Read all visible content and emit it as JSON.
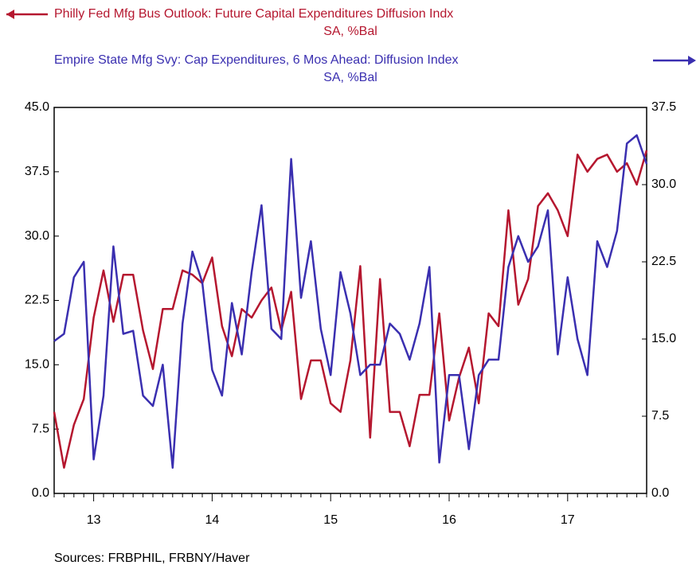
{
  "chart_data": {
    "type": "line",
    "categories": [
      null,
      null,
      null,
      null,
      "13",
      null,
      null,
      null,
      null,
      null,
      null,
      null,
      null,
      null,
      null,
      null,
      "14",
      null,
      null,
      null,
      null,
      null,
      null,
      null,
      null,
      null,
      null,
      null,
      "15",
      null,
      null,
      null,
      null,
      null,
      null,
      null,
      null,
      null,
      null,
      null,
      "16",
      null,
      null,
      null,
      null,
      null,
      null,
      null,
      null,
      null,
      null,
      null,
      "17",
      null,
      null,
      null,
      null,
      null,
      null,
      null,
      null
    ],
    "series": [
      {
        "name": "Philly Fed Mfg Bus Outlook: Future Capital Expenditures Diffusion Indx",
        "units": "SA, %Bal",
        "color": "#b5172f",
        "axis": "y",
        "values": [
          9.5,
          3.0,
          8.0,
          11.0,
          20.5,
          26.0,
          20.0,
          25.5,
          25.5,
          19.0,
          14.5,
          21.5,
          21.5,
          26.0,
          25.5,
          24.5,
          27.5,
          19.5,
          16.0,
          21.5,
          20.5,
          22.5,
          24.0,
          19.0,
          23.5,
          11.0,
          15.5,
          15.5,
          10.5,
          9.5,
          15.5,
          26.5,
          6.5,
          25.0,
          9.5,
          9.5,
          5.5,
          11.5,
          11.5,
          21.0,
          8.5,
          13.5,
          17.0,
          10.5,
          21.0,
          19.5,
          33.0,
          22.0,
          25.0,
          33.5,
          35.0,
          33.0,
          30.0,
          39.5,
          37.5,
          39.0,
          39.5,
          37.5,
          38.5,
          36.0,
          40.0
        ]
      },
      {
        "name": "Empire State Mfg Svy: Cap Expenditures, 6 Mos Ahead: Diffusion Index",
        "units": "SA, %Bal",
        "color": "#3a2fb0",
        "axis": "y2",
        "values": [
          14.8,
          15.5,
          21.0,
          22.5,
          3.3,
          9.5,
          24.0,
          15.5,
          15.8,
          9.5,
          8.5,
          12.5,
          2.5,
          16.5,
          23.5,
          20.5,
          12.0,
          9.5,
          18.5,
          13.5,
          21.5,
          28.0,
          16.0,
          15.0,
          32.5,
          19.0,
          24.5,
          16.0,
          11.5,
          21.5,
          17.5,
          11.5,
          12.5,
          12.5,
          16.5,
          15.5,
          13.0,
          16.5,
          22.0,
          3.0,
          11.5,
          11.5,
          4.3,
          11.5,
          13.0,
          13.0,
          22.0,
          25.0,
          22.5,
          24.0,
          27.5,
          13.5,
          21.0,
          15.0,
          11.5,
          24.5,
          22.0,
          25.5,
          34.0,
          34.8,
          32.0
        ]
      }
    ],
    "ylim": [
      0,
      45
    ],
    "yticks": [
      {
        "value": 0,
        "label": "0.0"
      },
      {
        "value": 7.5,
        "label": "7.5"
      },
      {
        "value": 15,
        "label": "15.0"
      },
      {
        "value": 22.5,
        "label": "22.5"
      },
      {
        "value": 30,
        "label": "30.0"
      },
      {
        "value": 37.5,
        "label": "37.5"
      },
      {
        "value": 45,
        "label": "45.0"
      }
    ],
    "y2lim": [
      0,
      37.5
    ],
    "y2ticks": [
      {
        "value": 0,
        "label": "0.0"
      },
      {
        "value": 7.5,
        "label": "7.5"
      },
      {
        "value": 15,
        "label": "15.0"
      },
      {
        "value": 22.5,
        "label": "22.5"
      },
      {
        "value": 30,
        "label": "30.0"
      },
      {
        "value": 37.5,
        "label": "37.5"
      }
    ],
    "source": "Sources:  FRBPHIL, FRBNY/Haver"
  }
}
